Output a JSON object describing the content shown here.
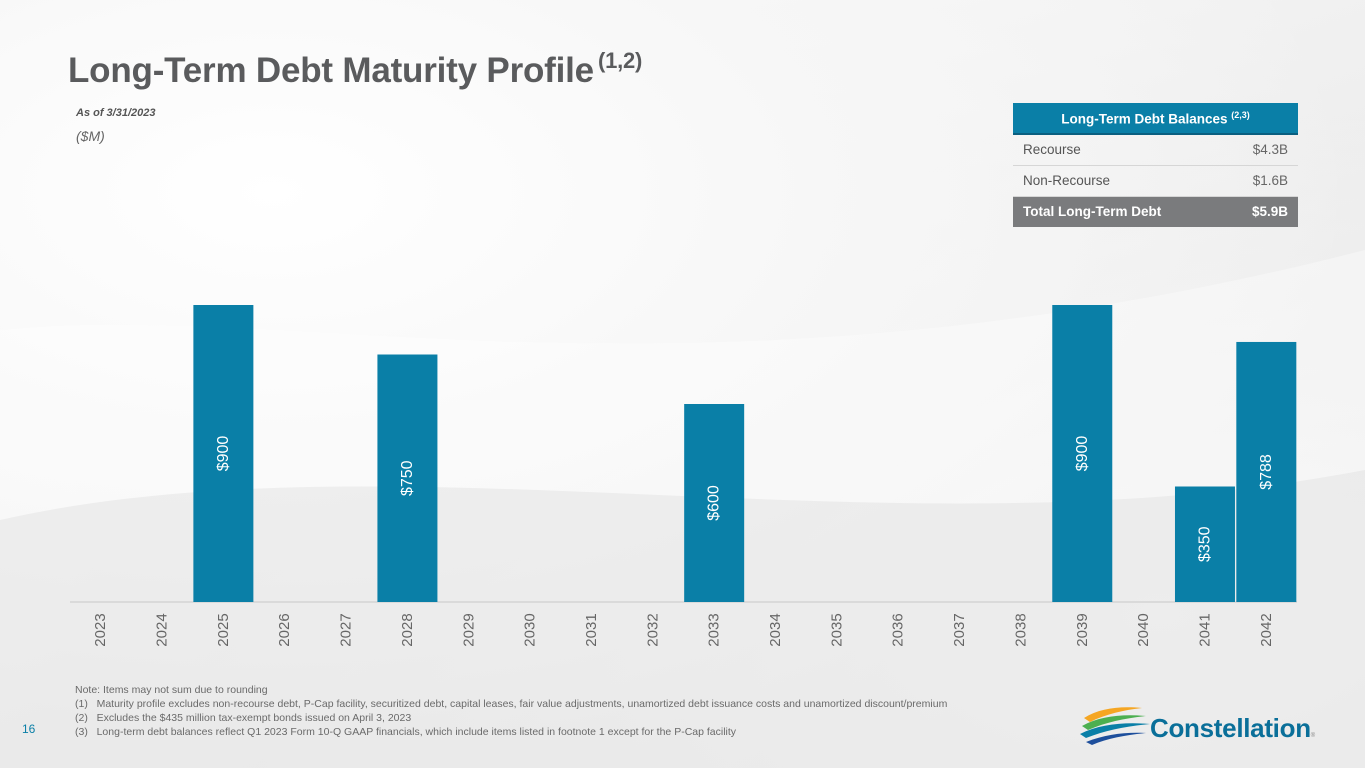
{
  "page": {
    "title": "Long-Term Debt Maturity Profile",
    "title_sup": "(1,2)",
    "as_of": "As of 3/31/2023",
    "units": "($M)",
    "page_number": "16"
  },
  "table": {
    "header": "Long-Term Debt Balances",
    "header_sup": "(2,3)",
    "rows": [
      {
        "label": "Recourse",
        "value": "$4.3B"
      },
      {
        "label": "Non-Recourse",
        "value": "$1.6B"
      }
    ],
    "total": {
      "label": "Total Long-Term Debt",
      "value": "$5.9B"
    }
  },
  "chart_data": {
    "type": "bar",
    "title": "",
    "xlabel": "",
    "ylabel": "($M)",
    "ylim": [
      0,
      900
    ],
    "categories": [
      "2023",
      "2024",
      "2025",
      "2026",
      "2027",
      "2028",
      "2029",
      "2030",
      "2031",
      "2032",
      "2033",
      "2034",
      "2035",
      "2036",
      "2037",
      "2038",
      "2039",
      "2040",
      "2041",
      "2042"
    ],
    "values": [
      0,
      0,
      900,
      0,
      0,
      750,
      0,
      0,
      0,
      0,
      600,
      0,
      0,
      0,
      0,
      0,
      900,
      0,
      350,
      788
    ],
    "data_labels": [
      "",
      "",
      "$900",
      "",
      "",
      "$750",
      "",
      "",
      "",
      "",
      "$600",
      "",
      "",
      "",
      "",
      "",
      "$900",
      "",
      "$350",
      "$788"
    ],
    "bar_color": "#0a7fa7",
    "grid": false
  },
  "notes": [
    "Note: Items may not sum due to rounding",
    "(1)   Maturity profile excludes non-recourse debt, P-Cap facility, securitized debt, capital leases, fair value adjustments, unamortized debt issuance costs and unamortized discount/premium",
    "(2)   Excludes the $435 million tax-exempt bonds issued on April 3, 2023",
    "(3)   Long-term debt balances reflect Q1 2023 Form 10-Q GAAP financials, which include items listed in footnote 1 except for the P-Cap facility"
  ],
  "logo": {
    "name": "Constellation",
    "mark": "®",
    "colors": [
      "#f5a623",
      "#4caf50",
      "#0a7fa7",
      "#1e4f9c"
    ]
  }
}
